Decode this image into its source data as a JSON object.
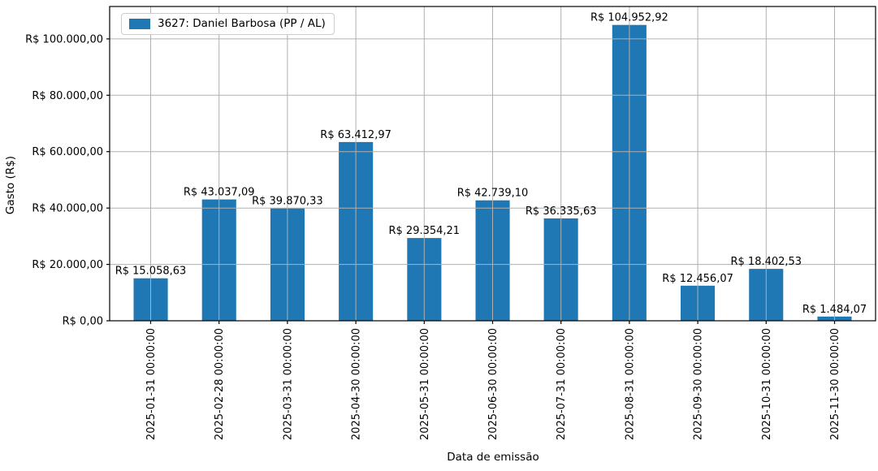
{
  "legend": {
    "label": "3627: Daniel Barbosa (PP / AL)",
    "swatch_color": "#1f77b4"
  },
  "chart_data": {
    "type": "bar",
    "title": "",
    "xlabel": "Data de emissão",
    "ylabel": "Gasto (R$)",
    "categories": [
      "2025-01-31 00:00:00",
      "2025-02-28 00:00:00",
      "2025-03-31 00:00:00",
      "2025-04-30 00:00:00",
      "2025-05-31 00:00:00",
      "2025-06-30 00:00:00",
      "2025-07-31 00:00:00",
      "2025-08-31 00:00:00",
      "2025-09-30 00:00:00",
      "2025-10-31 00:00:00",
      "2025-11-30 00:00:00"
    ],
    "series": [
      {
        "name": "3627: Daniel Barbosa (PP / AL)",
        "values": [
          15058.63,
          43037.09,
          39870.33,
          63412.97,
          29354.21,
          42739.1,
          36335.63,
          104952.92,
          12456.07,
          18402.53,
          1484.07
        ],
        "bar_labels": [
          "R$ 15.058,63",
          "R$ 43.037,09",
          "R$ 39.870,33",
          "R$ 63.412,97",
          "R$ 29.354,21",
          "R$ 42.739,10",
          "R$ 36.335,63",
          "R$ 104.952,92",
          "R$ 12.456,07",
          "R$ 18.402,53",
          "R$ 1.484,07"
        ],
        "color": "#1f77b4"
      }
    ],
    "yticks": [
      {
        "value": 0,
        "label": "R$ 0,00"
      },
      {
        "value": 20000,
        "label": "R$ 20.000,00"
      },
      {
        "value": 40000,
        "label": "R$ 40.000,00"
      },
      {
        "value": 60000,
        "label": "R$ 60.000,00"
      },
      {
        "value": 80000,
        "label": "R$ 80.000,00"
      },
      {
        "value": 100000,
        "label": "R$ 100.000,00"
      }
    ],
    "ylim": [
      0,
      111500
    ],
    "grid": true,
    "grid_color": "#b0b0b0",
    "axis_color": "#000000",
    "legend_position": "upper left"
  }
}
